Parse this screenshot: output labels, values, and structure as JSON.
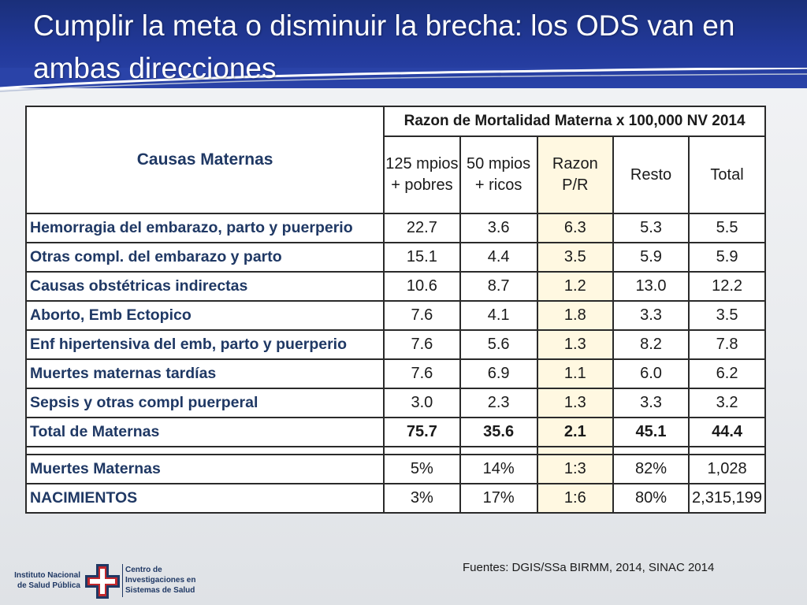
{
  "slide": {
    "title": "Cumplir la meta o disminuir la brecha: los ODS van en ambas direcciones"
  },
  "table": {
    "cause_header": "Causas Maternas",
    "group_header": "Razon de Mortalidad Materna x 100,000 NV 2014",
    "columns": {
      "c125": "125 mpios + pobres",
      "c50": "50 mpios + ricos",
      "ratio": "Razon P/R",
      "resto": "Resto",
      "total": "Total"
    },
    "rows": [
      {
        "cause": "Hemorragia del embarazo, parto y puerperio",
        "c125": "22.7",
        "c50": "3.6",
        "ratio": "6.3",
        "resto": "5.3",
        "total": "5.5"
      },
      {
        "cause": "Otras compl. del embarazo y parto",
        "c125": "15.1",
        "c50": "4.4",
        "ratio": "3.5",
        "resto": "5.9",
        "total": "5.9"
      },
      {
        "cause": "Causas obstétricas indirectas",
        "c125": "10.6",
        "c50": "8.7",
        "ratio": "1.2",
        "resto": "13.0",
        "total": "12.2"
      },
      {
        "cause": "Aborto, Emb Ectopico",
        "c125": "7.6",
        "c50": "4.1",
        "ratio": "1.8",
        "resto": "3.3",
        "total": "3.5"
      },
      {
        "cause": "Enf hipertensiva del emb, parto y puerperio",
        "c125": "7.6",
        "c50": "5.6",
        "ratio": "1.3",
        "resto": "8.2",
        "total": "7.8"
      },
      {
        "cause": "Muertes maternas tardías",
        "c125": "7.6",
        "c50": "6.9",
        "ratio": "1.1",
        "resto": "6.0",
        "total": "6.2"
      },
      {
        "cause": "Sepsis y otras compl puerperal",
        "c125": "3.0",
        "c50": "2.3",
        "ratio": "1.3",
        "resto": "3.3",
        "total": "3.2"
      },
      {
        "cause": "Total de Maternas",
        "c125": "75.7",
        "c50": "35.6",
        "ratio": "2.1",
        "resto": "45.1",
        "total": "44.4"
      }
    ],
    "summary_rows": [
      {
        "cause": "Muertes Maternas",
        "c125": "5%",
        "c50": "14%",
        "ratio": "1:3",
        "resto": "82%",
        "total": "1,028"
      },
      {
        "cause": "NACIMIENTOS",
        "c125": "3%",
        "c50": "17%",
        "ratio": "1:6",
        "resto": "80%",
        "total": "2,315,199"
      }
    ]
  },
  "footer": {
    "sources": "Fuentes: DGIS/SSa  BIRMM, 2014, SINAC 2014",
    "logo_left_line1": "Instituto Nacional",
    "logo_left_line2": "de Salud Pública",
    "logo_right_line1": "Centro de",
    "logo_right_line2": "Investigaciones en",
    "logo_right_line3": "Sistemas de Salud"
  },
  "colors": {
    "header_blue": "#22399a",
    "cause_text": "#1f3864",
    "ratio_highlight": "#fff8e1"
  },
  "icons": {
    "logo": "insp-cross-logo-icon"
  }
}
